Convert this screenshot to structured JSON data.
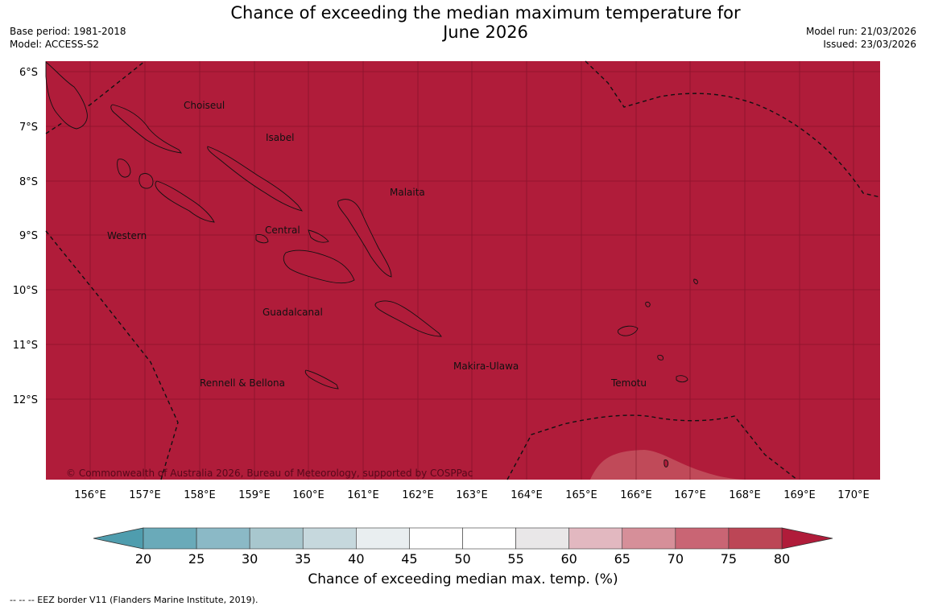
{
  "header": {
    "title_line1": "Chance of exceeding the median maximum temperature for",
    "title_line2": "June 2026",
    "base_period": "Base period: 1981-2018",
    "model": "Model: ACCESS-S2",
    "model_run": "Model run: 21/03/2026",
    "issued": "Issued: 23/03/2026"
  },
  "map": {
    "copyright": "© Commonwealth of Australia 2026, Bureau of Meteorology, supported by COSPPac",
    "lat_labels": [
      "6°S",
      "7°S",
      "8°S",
      "9°S",
      "10°S",
      "11°S",
      "12°S"
    ],
    "lon_labels": [
      "156°E",
      "157°E",
      "158°E",
      "159°E",
      "160°E",
      "161°E",
      "162°E",
      "163°E",
      "164°E",
      "165°E",
      "166°E",
      "167°E",
      "168°E",
      "169°E",
      "170°E"
    ],
    "regions": [
      "Choiseul",
      "Isabel",
      "Malaita",
      "Western",
      "Central",
      "Guadalcanal",
      "Makira-Ulawa",
      "Rennell & Bellona",
      "Temotu"
    ],
    "fill_color": "#b01c3a",
    "lighter_patch_color": "#c04a59"
  },
  "colorbar": {
    "ticks": [
      "20",
      "25",
      "30",
      "35",
      "40",
      "45",
      "50",
      "55",
      "60",
      "65",
      "70",
      "75",
      "80"
    ],
    "colors": [
      "#6aaab9",
      "#8bb9c6",
      "#a8c7ce",
      "#c6d8dd",
      "#e9eef0",
      "#ffffff",
      "#ffffff",
      "#e9e7e8",
      "#e2b8c0",
      "#d68f99",
      "#c96574",
      "#bc4656"
    ],
    "under_color": "#4f9dae",
    "over_color": "#b01c3a",
    "label": "Chance of exceeding median max. temp. (%)"
  },
  "footnote": "--  --  -- EEZ border V11 (Flanders Marine Institute, 2019)."
}
